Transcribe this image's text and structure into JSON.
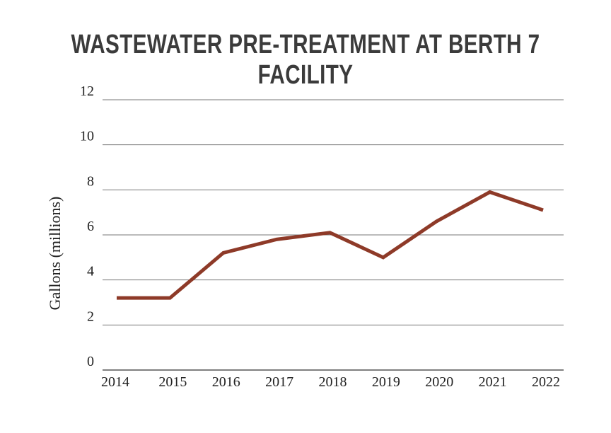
{
  "chart_data": {
    "type": "line",
    "title": "WASTEWATER PRE-TREATMENT AT BERTH 7 FACILITY",
    "xlabel": "",
    "ylabel": "Gallons (millions)",
    "categories": [
      "2014",
      "2015",
      "2016",
      "2017",
      "2018",
      "2019",
      "2020",
      "2021",
      "2022"
    ],
    "series": [
      {
        "values": [
          3.2,
          3.2,
          5.2,
          5.8,
          6.1,
          5.0,
          6.6,
          7.9,
          7.1
        ],
        "color": "#8e3a28"
      }
    ],
    "ylim": [
      0,
      12
    ],
    "yticks": [
      0,
      2,
      4,
      6,
      8,
      10,
      12
    ],
    "grid": true,
    "legend": "none"
  }
}
